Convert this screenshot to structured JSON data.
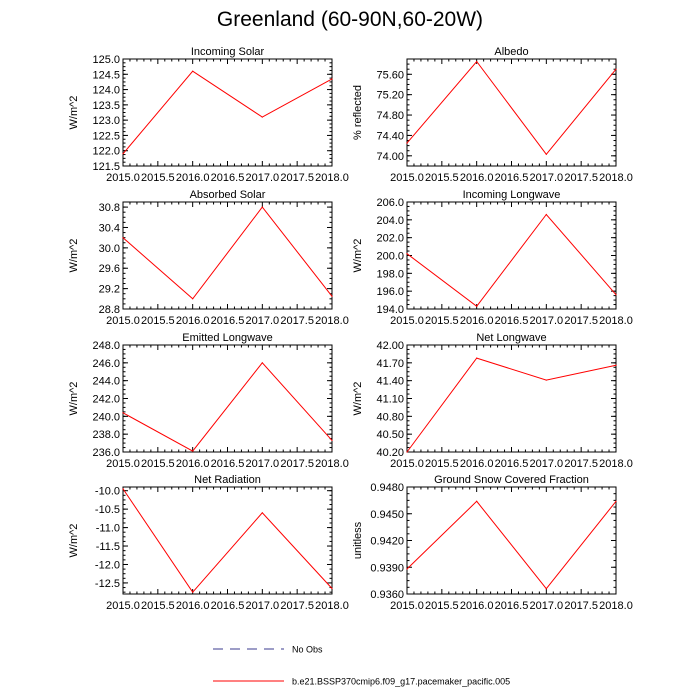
{
  "page": {
    "title": "Greenland (60-90N,60-20W)"
  },
  "legend": {
    "obs_label": "No Obs",
    "model_label": "b.e21.BSSP370cmip6.f09_g17.pacemaker_pacific.005",
    "obs_color": "#3b3b8f",
    "model_color": "#ff0000"
  },
  "chart_data": [
    {
      "type": "line",
      "title": "Incoming Solar",
      "ylabel": "W/m^2",
      "x": [
        2015.0,
        2016.0,
        2017.0,
        2018.0
      ],
      "series": [
        {
          "values": [
            121.9,
            124.6,
            123.1,
            124.35
          ],
          "color": "#ff0000"
        }
      ],
      "xlim": [
        2015.0,
        2018.0
      ],
      "ylim": [
        121.5,
        125.0
      ],
      "xticks": [
        "2015.0",
        "2015.5",
        "2016.0",
        "2016.5",
        "2017.0",
        "2017.5",
        "2018.0"
      ],
      "yticks": [
        "121.5",
        "122.0",
        "122.5",
        "123.0",
        "123.5",
        "124.0",
        "124.5",
        "125.0"
      ]
    },
    {
      "type": "line",
      "title": "Albedo",
      "ylabel": "% reflected",
      "x": [
        2015.0,
        2016.0,
        2017.0,
        2018.0
      ],
      "series": [
        {
          "values": [
            74.25,
            75.85,
            74.03,
            75.7
          ],
          "color": "#ff0000"
        }
      ],
      "xlim": [
        2015.0,
        2018.0
      ],
      "ylim": [
        73.8,
        75.9
      ],
      "xticks": [
        "2015.0",
        "2015.5",
        "2016.0",
        "2016.5",
        "2017.0",
        "2017.5",
        "2018.0"
      ],
      "yticks": [
        "74.00",
        "74.40",
        "74.80",
        "75.20",
        "75.60"
      ]
    },
    {
      "type": "line",
      "title": "Absorbed Solar",
      "ylabel": "W/m^2",
      "x": [
        2015.0,
        2016.0,
        2017.0,
        2018.0
      ],
      "series": [
        {
          "values": [
            30.2,
            29.0,
            30.8,
            29.05
          ],
          "color": "#ff0000"
        }
      ],
      "xlim": [
        2015.0,
        2018.0
      ],
      "ylim": [
        28.8,
        30.9
      ],
      "xticks": [
        "2015.0",
        "2015.5",
        "2016.0",
        "2016.5",
        "2017.0",
        "2017.5",
        "2018.0"
      ],
      "yticks": [
        "28.8",
        "29.2",
        "29.6",
        "30.0",
        "30.4",
        "30.8"
      ]
    },
    {
      "type": "line",
      "title": "Incoming Longwave",
      "ylabel": "W/m^2",
      "x": [
        2015.0,
        2016.0,
        2017.0,
        2018.0
      ],
      "series": [
        {
          "values": [
            200.2,
            194.3,
            204.6,
            195.6
          ],
          "color": "#ff0000"
        }
      ],
      "xlim": [
        2015.0,
        2018.0
      ],
      "ylim": [
        194.0,
        206.0
      ],
      "xticks": [
        "2015.0",
        "2015.5",
        "2016.0",
        "2016.5",
        "2017.0",
        "2017.5",
        "2018.0"
      ],
      "yticks": [
        "194.0",
        "196.0",
        "198.0",
        "200.0",
        "202.0",
        "204.0",
        "206.0"
      ]
    },
    {
      "type": "line",
      "title": "Emitted Longwave",
      "ylabel": "W/m^2",
      "x": [
        2015.0,
        2016.0,
        2017.0,
        2018.0
      ],
      "series": [
        {
          "values": [
            240.4,
            236.1,
            246.0,
            237.3
          ],
          "color": "#ff0000"
        }
      ],
      "xlim": [
        2015.0,
        2018.0
      ],
      "ylim": [
        236.0,
        248.0
      ],
      "xticks": [
        "2015.0",
        "2015.5",
        "2016.0",
        "2016.5",
        "2017.0",
        "2017.5",
        "2018.0"
      ],
      "yticks": [
        "236.0",
        "238.0",
        "240.0",
        "242.0",
        "244.0",
        "246.0",
        "248.0"
      ]
    },
    {
      "type": "line",
      "title": "Net Longwave",
      "ylabel": "W/m^2",
      "x": [
        2015.0,
        2016.0,
        2017.0,
        2018.0
      ],
      "series": [
        {
          "values": [
            40.2,
            41.78,
            41.41,
            41.66
          ],
          "color": "#ff0000"
        }
      ],
      "xlim": [
        2015.0,
        2018.0
      ],
      "ylim": [
        40.2,
        42.0
      ],
      "xticks": [
        "2015.0",
        "2015.5",
        "2016.0",
        "2016.5",
        "2017.0",
        "2017.5",
        "2018.0"
      ],
      "yticks": [
        "40.20",
        "40.50",
        "40.80",
        "41.10",
        "41.40",
        "41.70",
        "42.00"
      ]
    },
    {
      "type": "line",
      "title": "Net Radiation",
      "ylabel": "W/m^2",
      "x": [
        2015.0,
        2016.0,
        2017.0,
        2018.0
      ],
      "series": [
        {
          "values": [
            -9.95,
            -12.75,
            -10.6,
            -12.65
          ],
          "color": "#ff0000"
        }
      ],
      "xlim": [
        2015.0,
        2018.0
      ],
      "ylim": [
        -12.8,
        -9.9
      ],
      "xticks": [
        "2015.0",
        "2015.5",
        "2016.0",
        "2016.5",
        "2017.0",
        "2017.5",
        "2018.0"
      ],
      "yticks": [
        "-12.5",
        "-12.0",
        "-11.5",
        "-11.0",
        "-10.5",
        "-10.0"
      ]
    },
    {
      "type": "line",
      "title": "Ground Snow Covered Fraction",
      "ylabel": "unitless",
      "x": [
        2015.0,
        2016.0,
        2017.0,
        2018.0
      ],
      "series": [
        {
          "values": [
            0.9388,
            0.9464,
            0.9366,
            0.9464
          ],
          "color": "#ff0000"
        }
      ],
      "xlim": [
        2015.0,
        2018.0
      ],
      "ylim": [
        0.936,
        0.948
      ],
      "xticks": [
        "2015.0",
        "2015.5",
        "2016.0",
        "2016.5",
        "2017.0",
        "2017.5",
        "2018.0"
      ],
      "yticks": [
        "0.9360",
        "0.9390",
        "0.9420",
        "0.9450",
        "0.9480"
      ]
    }
  ]
}
